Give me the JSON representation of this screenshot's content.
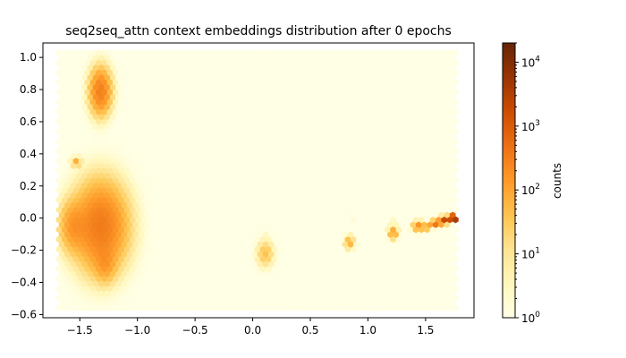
{
  "chart_data": {
    "type": "heatmap",
    "subtype": "hexbin",
    "title": "seq2seq_attn context embeddings distribution after 0 epochs",
    "xlabel": "",
    "ylabel": "",
    "xlim": [
      -1.82,
      1.92
    ],
    "ylim": [
      -0.62,
      1.09
    ],
    "x_ticks": [
      -1.5,
      -1.0,
      -0.5,
      0.0,
      0.5,
      1.0,
      1.5
    ],
    "x_tick_labels": [
      "−1.5",
      "−1.0",
      "−0.5",
      "0.0",
      "0.5",
      "1.0",
      "1.5"
    ],
    "y_ticks": [
      -0.6,
      -0.4,
      -0.2,
      0.0,
      0.2,
      0.4,
      0.6,
      0.8,
      1.0
    ],
    "y_tick_labels": [
      "−0.6",
      "−0.4",
      "−0.2",
      "0.0",
      "0.2",
      "0.4",
      "0.6",
      "0.8",
      "1.0"
    ],
    "data_extent": {
      "x": [
        -1.68,
        1.76
      ],
      "y": [
        -0.56,
        1.03
      ]
    },
    "colormap": {
      "name": "YlOrBr",
      "stops": [
        "#ffffe5",
        "#fff7bc",
        "#fee391",
        "#fec44f",
        "#fe9929",
        "#ec7014",
        "#cc4c02",
        "#993404",
        "#662506"
      ]
    },
    "colorbar": {
      "label": "counts",
      "scale": "log",
      "range": [
        1,
        20000
      ],
      "ticks": [
        1,
        10,
        100,
        1000,
        10000
      ],
      "tick_bases": [
        "10",
        "10",
        "10",
        "10",
        "10"
      ],
      "tick_exponents": [
        "0",
        "1",
        "2",
        "3",
        "4"
      ]
    },
    "clusters": [
      {
        "x": -1.32,
        "y": 0.79,
        "sx": 0.045,
        "sy": 0.07,
        "peak_count": 300
      },
      {
        "x": -1.32,
        "y": -0.05,
        "sx": 0.11,
        "sy": 0.13,
        "peak_count": 350
      },
      {
        "x": -1.55,
        "y": -0.05,
        "sx": 0.06,
        "sy": 0.08,
        "peak_count": 150
      },
      {
        "x": -1.28,
        "y": -0.28,
        "sx": 0.05,
        "sy": 0.06,
        "peak_count": 120
      },
      {
        "x": -1.53,
        "y": 0.35,
        "sx": 0.02,
        "sy": 0.015,
        "peak_count": 80
      },
      {
        "x": 0.11,
        "y": -0.22,
        "sx": 0.035,
        "sy": 0.04,
        "peak_count": 40
      },
      {
        "x": 0.11,
        "y": -0.09,
        "sx": 0.01,
        "sy": 0.01,
        "peak_count": 3
      },
      {
        "x": 0.84,
        "y": -0.15,
        "sx": 0.02,
        "sy": 0.02,
        "peak_count": 80
      },
      {
        "x": 0.86,
        "y": 0.0,
        "sx": 0.01,
        "sy": 0.01,
        "peak_count": 3
      },
      {
        "x": 1.22,
        "y": -0.09,
        "sx": 0.02,
        "sy": 0.02,
        "peak_count": 120
      },
      {
        "x": 1.22,
        "y": 0.0,
        "sx": 0.01,
        "sy": 0.01,
        "peak_count": 3
      },
      {
        "x": 1.44,
        "y": -0.05,
        "sx": 0.025,
        "sy": 0.015,
        "peak_count": 180
      },
      {
        "x": 1.52,
        "y": -0.05,
        "sx": 0.015,
        "sy": 0.01,
        "peak_count": 300
      },
      {
        "x": 1.6,
        "y": -0.03,
        "sx": 0.02,
        "sy": 0.01,
        "peak_count": 800
      },
      {
        "x": 1.67,
        "y": -0.01,
        "sx": 0.02,
        "sy": 0.01,
        "peak_count": 2000
      },
      {
        "x": 1.74,
        "y": 0.0,
        "sx": 0.015,
        "sy": 0.008,
        "peak_count": 20000
      }
    ],
    "grid": false
  }
}
